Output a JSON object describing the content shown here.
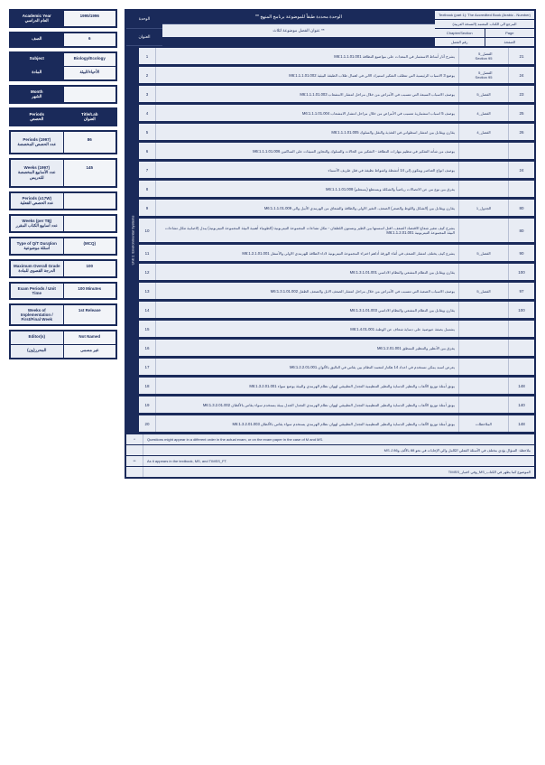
{
  "colors": {
    "primary": "#1a2a5a",
    "light_bg": "#e8ecf4",
    "panel_bg": "#f2f4f8",
    "border_light": "#b8c0d4",
    "text": "#1a2a5a"
  },
  "sidebar": {
    "block1": {
      "label_top": "Academic Year",
      "label_ar": "العام الدراسي",
      "value": "1995/1996"
    },
    "block2": {
      "label": "الصف",
      "value": "6"
    },
    "block3": {
      "row1_l": "Subject",
      "row1_r": "Biology/Ecology",
      "row2_l": "المادة",
      "row2_r": "الأحياء/البيئة"
    },
    "block4": {
      "label_l": "Month",
      "label_ar": "الشهر",
      "value": ""
    },
    "block5": {
      "label_l": "Periods",
      "label_r": "Title/Lab",
      "label_ar_l": "الحصص",
      "label_ar_r": "العنوان"
    },
    "block6": {
      "label_top": "Periods (1997)",
      "label_ar": "عدد الحصص المخصصة",
      "value": "86"
    },
    "block7": {
      "label_top": "Weeks (1997)",
      "label_ar": "عدد الأسابيع المخصصة للتدريس",
      "value": "145"
    },
    "block8": {
      "label_top": "Periods (x17W)",
      "label_ar": "عدد الحصص الفعلية",
      "value": ""
    },
    "block9": {
      "label_top": "Weeks (per TB)",
      "label_ar": "عدد أسابيع الكتاب المقرر",
      "value": ""
    },
    "block10": {
      "label_top": "Type of Q/T Duration",
      "label_ar": "أسئلة موضوعية",
      "value": "(MCQ)"
    },
    "block11": {
      "label_top": "Maximum Overall Grade",
      "label_ar": "الدرجة القصوى للمادة",
      "value": "100"
    },
    "block12": {
      "label_top": "Exam Periods / Unit Time",
      "label_ar": "",
      "value": "100 Minutes"
    },
    "block13": {
      "label_top": "Weeks of Implementation / First/Final Week",
      "label_ar": "",
      "value": "1st Release"
    },
    "block14": {
      "label_l": "Editor(s)",
      "label_r": "Not Named",
      "ar_l": "المحرر(ون)",
      "ar_r": "غير مسمى"
    }
  },
  "header": {
    "left_top": "الوحدة",
    "left_bot": "العنوان",
    "title": "** الوحدة محددة طبقاً للموضوعة برنامج المنهج",
    "subtitle": "عنوان الفصل موضوعة لثلاث **",
    "right_title": "Textbook (part 1): The Accredited Book (Arabic - Number)",
    "right_sub": "المرجع الى الكتاب المعتمد (النسخة العربية)",
    "right_r2_l": "Chapter/Section",
    "right_r2_r": "Page",
    "right_r3_l": "رقم الفصل",
    "right_r3_r": "الصفحة"
  },
  "rail_label": "Unit 1: Environmental Systems",
  "rows": [
    {
      "n": "1",
      "desc": "يشرح آثار أمناط الاستثمار في المعدات على مواضيع النظافة  M6:1.1.1.01.001",
      "col3": "الفصل_5\n95 Section",
      "col4": "21"
    },
    {
      "n": "2",
      "desc": "يوضع 3 الاسباب الرئيسية التي تتطلب التفكير استيراد الالي فى اهمال طلاب الطبقة البيئية  M6:1.1.1.01.002",
      "col3": "الفصل_5\n95 Section",
      "col4": "24"
    },
    {
      "n": "3",
      "desc": "يوصف الاسباب السبعة التي تتسبب في الأمراض من خلال مراحل انتشار الامشعاب  M6:1.1.1.01.003",
      "col3": "الفصل_5",
      "col4": "23"
    },
    {
      "n": "4",
      "desc": "يوصف 5 اسباب استثمارية تتسبب في الأمراض من خلال مراحل انتشار الامشعاب  M6:1.1.1.01.004",
      "col3": "الفصل_4",
      "col4": "25"
    },
    {
      "n": "5",
      "desc": "يقارن ويقابل بين انتشار اسطواني في التغذية والنقل والسلوك  M6:1.1.1.01.005",
      "col3": "الفصل_4",
      "col4": "26"
    },
    {
      "n": "6",
      "desc": "يوصف من شأنه التفكير في تنظيم مهارات النظافة - التفكير من الحالات والسلوك والتجاوز السيئات على الساكنين  M6:1.1.1.01.006",
      "col3": "",
      "col4": ""
    },
    {
      "n": "7",
      "desc": "يوصف انواع العناصر ويتكون إلى 14 أنشطة واشواط نظيفة في فثل طريف  الأسماء",
      "col3": "",
      "col4": "24"
    },
    {
      "n": "8",
      "desc": "يفرق بين نوع من عن الاتصالات رياضياً والشكلة ويستطع (يستعلم)  M6:1.1.1.01.008",
      "col3": "",
      "col4": ""
    },
    {
      "n": "9",
      "desc": "يقارن ويقابل بين (الشكل واللوط والضعر) الصعف، التغير الاولى والطاقة والشعاق من الهرمدي الأبيل والى  M6:1.1.1.01.009",
      "col3": "الجدول_1",
      "col4": "80"
    },
    {
      "n": "10",
      "desc": "يشرح كيف تتغير شعاع الاقتصاد الصعف، اقتل اسستها بين الطير وتستون اللطفان - تتكل تشاعات المجموعة التيتربونية (الطونياء أهمية البيئة المجموعة التيتربونية) يبدل إلاصابية تتكل تشاعات البيئة المجموعة التيتربونية  M6:1.1.2.01.001",
      "col3": "",
      "col4": "80",
      "tall": true
    },
    {
      "n": "11",
      "desc": "يشرع كيف يختلف انتشار الصعف في أثناء الورقة أداهم اختراء المجموعة التيتربونية لاداء الطاقة للهرمدي الاولى والأسفل  M6:1.2.1.01.001",
      "col3": "الفصل_5",
      "col4": "90"
    },
    {
      "n": "12",
      "desc": "يقارن ويقابل بين النظام المشعي والنظام الاداسي  M6:1.3.1.01.001",
      "col3": "",
      "col4": "100"
    },
    {
      "n": "13",
      "desc": "يوصف الاسباب الصعبة التي تتسبب في الأمراض من خلال مراحل انتشار الصعف الابل والصعف الطفل  M6:1.3.1.01.002",
      "col3": "الفصل_5",
      "col4": "97"
    },
    {
      "n": "14",
      "desc": "يقارن ويقابل بين النظام المشعي والنظام الاداسي  M6:1.3.1.01.003",
      "col3": "",
      "col4": "100"
    },
    {
      "n": "15",
      "desc": "يشتمل بصفة عيوضية على دساية شعاف عن الوطنة  M6:1.4.01.001",
      "col3": "",
      "col4": ""
    },
    {
      "n": "16",
      "desc": "يفزق بين الأنظير والتنظير للمنطق  M6:1.2.01.001",
      "col3": "",
      "col4": ""
    },
    {
      "n": "17",
      "desc": "يعرض اسبد يمكن تستخدم في اعداد 14 هكتار لتتعمد النظام  بين يقاس في التاليق بالألوان  M6:1.2.2.01.001",
      "col3": "",
      "col4": ""
    },
    {
      "n": "18",
      "desc": "يونق أمثلة توزيع الألعاب والنظير الدساية والنظير التنظيمية التجدل التطبيقي لهوان نظام الهرمدي والبيئة يوضع سواء  M6:1.3.2.01.001",
      "col3": "",
      "col4": "148"
    },
    {
      "n": "19",
      "desc": "يونق أمثلة توزيع الألعاب والنظير الدساية والنظير التنظيمية التجدل التطبيقي لهوان نظام الهرمدي التجدل الجدل يبيئة يستخدم سواء يقاس بالألطان  M6:1.3.2.01.002",
      "col3": "",
      "col4": "140"
    },
    {
      "n": "20",
      "desc": "يونق أمثلة توزيع الألعاب والنظير الدساية والنظير التنظيمية التجدل التطبيقي لهوان نظام الهرمدي يستخدم  سواء يقاس بالألطان  M6:1.3.2.01.003",
      "col3": "الملاحظات",
      "col4": "148"
    }
  ],
  "footer": [
    {
      "marker": "*",
      "text": "Questions might appear in a different order in the actual exam, or on the exam paper in the case of M and MS.",
      "ltr": true
    },
    {
      "marker": "",
      "text": "ملاحظة: السؤال يؤدي مختلف في الأسئلة الفعلي الكامل والي الإجابات في نحو 88 بالألف و86 لـ MS"
    },
    {
      "marker": "**",
      "text": "As it appears in the textbook, MS, and TIMSS_FT.",
      "ltr": true
    },
    {
      "marker": "",
      "text": "الموضوع كما يظهر في الكتاب_MS_وفي اختبار_TIMSS"
    }
  ]
}
